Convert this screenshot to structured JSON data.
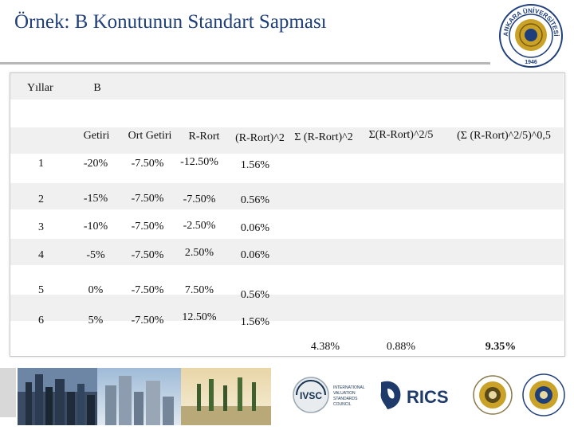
{
  "page": {
    "title": "Örnek: B Konutunun Standart Sapması"
  },
  "table": {
    "header_row1": {
      "years": "Yıllar",
      "asset": "B"
    },
    "header_row2": [
      "Getiri",
      "Ort Getiri",
      "R-Rort",
      "(R-Rort)^2",
      "Σ (R-Rort)^2",
      "Σ(R-Rort)^2/5",
      "(Σ (R-Rort)^2/5)^0,5"
    ],
    "rows": [
      {
        "year": "1",
        "getiri": "-20%",
        "ort": "-7.50%",
        "rrort": "-12.50%",
        "sq": "1.56%"
      },
      {
        "year": "2",
        "getiri": "-15%",
        "ort": "-7.50%",
        "rrort": "-7.50%",
        "sq": "0.56%"
      },
      {
        "year": "3",
        "getiri": "-10%",
        "ort": "-7.50%",
        "rrort": "-2.50%",
        "sq": "0.06%"
      },
      {
        "year": "4",
        "getiri": "-5%",
        "ort": "-7.50%",
        "rrort": "2.50%",
        "sq": "0.06%"
      },
      {
        "year": "5",
        "getiri": "0%",
        "ort": "-7.50%",
        "rrort": "7.50%",
        "sq": "0.56%"
      },
      {
        "year": "6",
        "getiri": "5%",
        "ort": "-7.50%",
        "rrort": "12.50%",
        "sq": "1.56%"
      }
    ],
    "totals": {
      "sum_sq": "4.38%",
      "variance": "0.88%",
      "std_dev": "9.35%"
    }
  },
  "logos": {
    "ivsc": "IVSC",
    "ivsc_full": "INTERNATIONAL VALUATION STANDARDS COUNCIL",
    "rics": "RICS",
    "university": "ANKARA ÜNİVERSİTESİ",
    "year": "1946"
  },
  "colors": {
    "title": "#1f3f7a",
    "band": "#f0f0f0",
    "gold": "#c9a227"
  }
}
